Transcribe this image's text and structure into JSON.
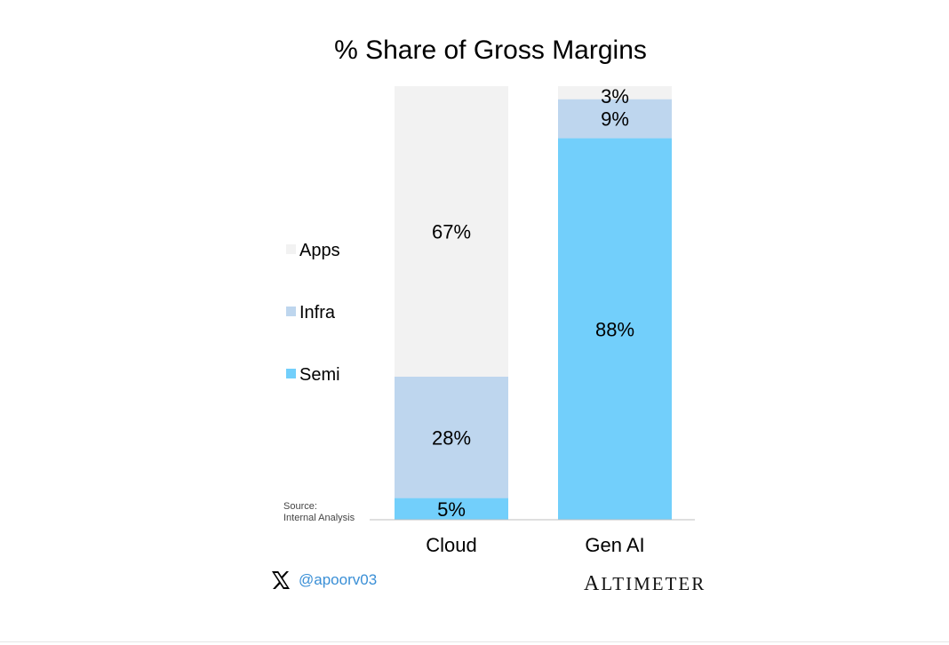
{
  "chart_data": {
    "type": "bar",
    "stacked": true,
    "percent": true,
    "title": "% Share of Gross Margins",
    "categories": [
      "Cloud",
      "Gen AI"
    ],
    "series": [
      {
        "name": "Semi",
        "values": [
          5,
          88
        ],
        "labels": [
          "5%",
          "88%"
        ],
        "color": "#72cffb"
      },
      {
        "name": "Infra",
        "values": [
          28,
          9
        ],
        "labels": [
          "28%",
          "9%"
        ],
        "color": "#bed6ee"
      },
      {
        "name": "Apps",
        "values": [
          67,
          3
        ],
        "labels": [
          "67%",
          "3%"
        ],
        "color": "#f2f2f2"
      }
    ],
    "legend": {
      "placement": "left",
      "order": [
        "Apps",
        "Infra",
        "Semi"
      ]
    },
    "ylim": [
      0,
      100
    ],
    "grid": false
  },
  "source": {
    "line1": "Source:",
    "line2": "Internal Analysis"
  },
  "social": {
    "handle": "@apoorv03",
    "icon": "x-logo-icon"
  },
  "brand": {
    "name": "ALTIMETER"
  }
}
